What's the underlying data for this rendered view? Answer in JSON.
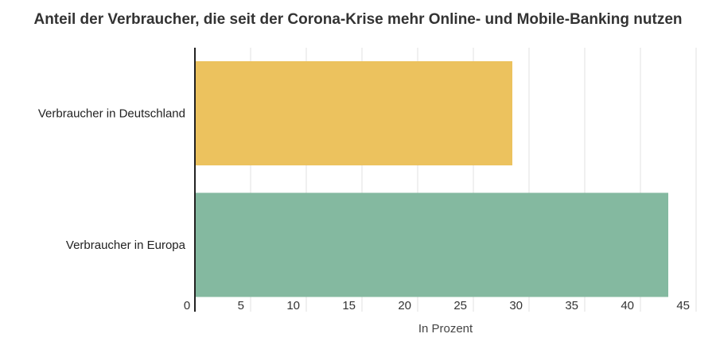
{
  "chart_data": {
    "type": "bar",
    "orientation": "horizontal",
    "title": "Anteil der Verbraucher, die seit der Corona-Krise mehr Online- und Mobile-Banking nutzen",
    "xlabel": "In Prozent",
    "ylabel": "",
    "categories": [
      "Verbraucher in Deutschland",
      "Verbraucher in Europa"
    ],
    "values": [
      28.5,
      42.5
    ],
    "colors": [
      "#ecc25e",
      "#84b9a0"
    ],
    "xlim": [
      0,
      45
    ],
    "ticks": [
      0,
      5,
      10,
      15,
      20,
      25,
      30,
      35,
      40,
      45
    ],
    "grid": true
  }
}
